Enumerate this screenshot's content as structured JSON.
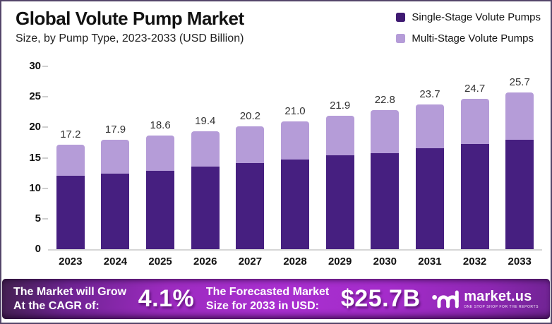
{
  "header": {
    "title": "Global Volute Pump Market",
    "subtitle": "Size, by Pump Type, 2023-2033 (USD Billion)"
  },
  "legend": {
    "items": [
      {
        "label": "Single-Stage Volute Pumps",
        "color": "#3f1a72"
      },
      {
        "label": "Multi-Stage Volute Pumps",
        "color": "#b59cd8"
      }
    ]
  },
  "chart_data": {
    "type": "bar",
    "stacked": true,
    "title": "Global Volute Pump Market",
    "subtitle": "Size, by Pump Type, 2023-2033 (USD Billion)",
    "categories": [
      "2023",
      "2024",
      "2025",
      "2026",
      "2027",
      "2028",
      "2029",
      "2030",
      "2031",
      "2032",
      "2033"
    ],
    "series": [
      {
        "name": "Single-Stage Volute Pumps",
        "color": "#461f80",
        "values": [
          12.0,
          12.4,
          12.9,
          13.5,
          14.1,
          14.7,
          15.4,
          15.8,
          16.6,
          17.3,
          17.9
        ]
      },
      {
        "name": "Multi-Stage Volute Pumps",
        "color": "#b59cd8",
        "values": [
          5.2,
          5.5,
          5.7,
          5.9,
          6.1,
          6.3,
          6.5,
          7.0,
          7.1,
          7.4,
          7.8
        ]
      }
    ],
    "totals": [
      17.2,
      17.9,
      18.6,
      19.4,
      20.2,
      21.0,
      21.9,
      22.8,
      23.7,
      24.7,
      25.7
    ],
    "total_labels": [
      "17.2",
      "17.9",
      "18.6",
      "19.4",
      "20.2",
      "21.0",
      "21.9",
      "22.8",
      "23.7",
      "24.7",
      "25.7"
    ],
    "xlabel": "",
    "ylabel": "",
    "ylim": [
      0,
      30
    ],
    "y_ticks": [
      0,
      5,
      10,
      15,
      20,
      25,
      30
    ],
    "grid": false,
    "legend_position": "top-right"
  },
  "banner": {
    "cagr_label_line1": "The Market will Grow",
    "cagr_label_line2": "At the CAGR of:",
    "cagr_value": "4.1%",
    "forecast_label_line1": "The Forecasted Market",
    "forecast_label_line2": "Size for 2033 in USD:",
    "forecast_value": "$25.7B",
    "logo": {
      "name": "market.us",
      "tagline": "ONE STOP SHOP FOR THE REPORTS"
    },
    "colors": {
      "mid": "#a92fd0",
      "left": "#42204f",
      "right": "#6f2392"
    }
  }
}
